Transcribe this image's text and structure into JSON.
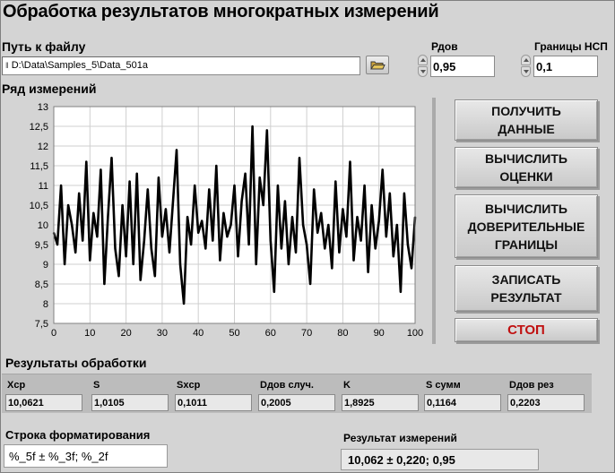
{
  "title": "Обработка результатов многократных измерений",
  "file": {
    "label": "Путь к файлу",
    "path_prefix": "ȁ",
    "path": "D:\\Data\\Samples_5\\Data_501a",
    "browse_icon": "folder-icon"
  },
  "controls": {
    "pdov": {
      "label": "Рдов",
      "value": "0,95"
    },
    "nsp": {
      "label": "Границы НСП",
      "value": "0,1"
    }
  },
  "chart_data": {
    "type": "line",
    "title": "Ряд измерений",
    "xlim": [
      0,
      100
    ],
    "ylim": [
      7.5,
      13
    ],
    "x_ticks": [
      "0",
      "10",
      "20",
      "30",
      "40",
      "50",
      "60",
      "70",
      "80",
      "90",
      "100"
    ],
    "y_ticks": [
      "7,5",
      "8",
      "8,5",
      "9",
      "9,5",
      "10",
      "10,5",
      "11",
      "11,5",
      "12",
      "12,5",
      "13"
    ],
    "grid": true,
    "series": [
      {
        "color": "#000000",
        "x": [
          0,
          1,
          2,
          3,
          4,
          5,
          6,
          7,
          8,
          9,
          10,
          11,
          12,
          13,
          14,
          15,
          16,
          17,
          18,
          19,
          20,
          21,
          22,
          23,
          24,
          25,
          26,
          27,
          28,
          29,
          30,
          31,
          32,
          33,
          34,
          35,
          36,
          37,
          38,
          39,
          40,
          41,
          42,
          43,
          44,
          45,
          46,
          47,
          48,
          49,
          50,
          51,
          52,
          53,
          54,
          55,
          56,
          57,
          58,
          59,
          60,
          61,
          62,
          63,
          64,
          65,
          66,
          67,
          68,
          69,
          70,
          71,
          72,
          73,
          74,
          75,
          76,
          77,
          78,
          79,
          80,
          81,
          82,
          83,
          84,
          85,
          86,
          87,
          88,
          89,
          90,
          91,
          92,
          93,
          94,
          95,
          96,
          97,
          98,
          99,
          100
        ],
        "values": [
          9.8,
          9.5,
          11.0,
          9.0,
          10.5,
          10.0,
          9.3,
          10.8,
          9.6,
          11.6,
          9.1,
          10.3,
          9.7,
          11.4,
          8.5,
          10.2,
          11.7,
          9.4,
          8.7,
          10.5,
          9.2,
          11.1,
          9.0,
          11.3,
          8.6,
          9.6,
          10.9,
          9.4,
          8.7,
          11.2,
          9.7,
          10.4,
          9.3,
          10.6,
          11.9,
          9.0,
          8.0,
          10.2,
          9.5,
          11.0,
          9.8,
          10.1,
          9.4,
          10.9,
          9.6,
          11.5,
          9.1,
          10.3,
          9.7,
          10.0,
          11.0,
          9.2,
          10.6,
          11.3,
          9.5,
          12.5,
          9.0,
          11.2,
          10.5,
          12.4,
          9.6,
          8.3,
          11.0,
          9.4,
          10.6,
          9.0,
          10.2,
          9.3,
          11.7,
          10.0,
          9.5,
          8.5,
          10.9,
          9.8,
          10.3,
          9.4,
          10.0,
          8.9,
          11.1,
          9.3,
          10.4,
          9.7,
          11.6,
          9.1,
          10.2,
          9.6,
          11.0,
          8.8,
          10.5,
          9.4,
          10.1,
          11.4,
          9.7,
          10.8,
          9.2,
          10.0,
          8.3,
          10.8,
          9.5,
          8.9,
          10.2
        ]
      }
    ]
  },
  "buttons": [
    {
      "label": "ПОЛУЧИТЬ\nДАННЫЕ"
    },
    {
      "label": "ВЫЧИСЛИТЬ\nОЦЕНКИ"
    },
    {
      "label": "ВЫЧИСЛИТЬ\nДОВЕРИТЕЛЬНЫЕ\nГРАНИЦЫ"
    },
    {
      "label": "ЗАПИСАТЬ\nРЕЗУЛЬТАТ"
    },
    {
      "label": "СТОП",
      "color": "#c01010"
    }
  ],
  "results": {
    "label": "Результаты обработки",
    "items": [
      {
        "caption": "Xср",
        "value": "10,0621"
      },
      {
        "caption": "S",
        "value": "1,0105"
      },
      {
        "caption": "Sxср",
        "value": "0,1011"
      },
      {
        "caption": "Dдов случ.",
        "value": "0,2005"
      },
      {
        "caption": "K",
        "value": "1,8925"
      },
      {
        "caption": "S сумм",
        "value": "0,1164"
      },
      {
        "caption": "Dдов рез",
        "value": "0,2203"
      }
    ]
  },
  "format": {
    "label": "Строка форматирования",
    "value": "%_5f ± %_3f; %_2f"
  },
  "result": {
    "label": "Результат измерений",
    "value": "10,062 ± 0,220; 0,95"
  }
}
